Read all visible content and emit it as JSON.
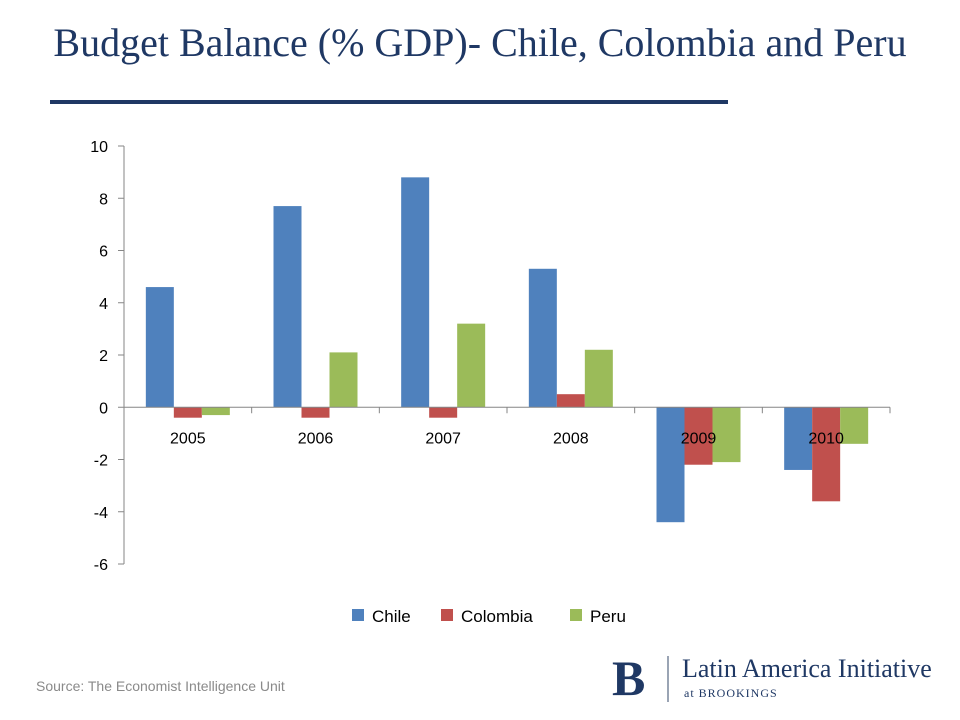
{
  "slide": {
    "title": "Budget Balance (% GDP)- Chile, Colombia and Peru",
    "source": "Source: The Economist Intelligence Unit"
  },
  "brand": {
    "mark": "B",
    "name": "Latin America Initiative",
    "sub": "at BROOKINGS"
  },
  "chart_data": {
    "type": "bar",
    "title": "",
    "xlabel": "",
    "ylabel": "",
    "categories": [
      "2005",
      "2006",
      "2007",
      "2008",
      "2009",
      "2010"
    ],
    "series": [
      {
        "name": "Chile",
        "color": "#4f81bd",
        "values": [
          4.6,
          7.7,
          8.8,
          5.3,
          -4.4,
          -2.4
        ]
      },
      {
        "name": "Colombia",
        "color": "#c0504d",
        "values": [
          -0.4,
          -0.4,
          -0.4,
          0.5,
          -2.2,
          -3.6
        ]
      },
      {
        "name": "Peru",
        "color": "#9bbb59",
        "values": [
          -0.3,
          2.1,
          3.2,
          2.2,
          -2.1,
          -1.4
        ]
      }
    ],
    "ylim": [
      -6,
      10
    ],
    "yticks": [
      10,
      8,
      6,
      4,
      2,
      0,
      -2,
      -4,
      -6
    ],
    "grid": false,
    "legend_position": "bottom"
  }
}
